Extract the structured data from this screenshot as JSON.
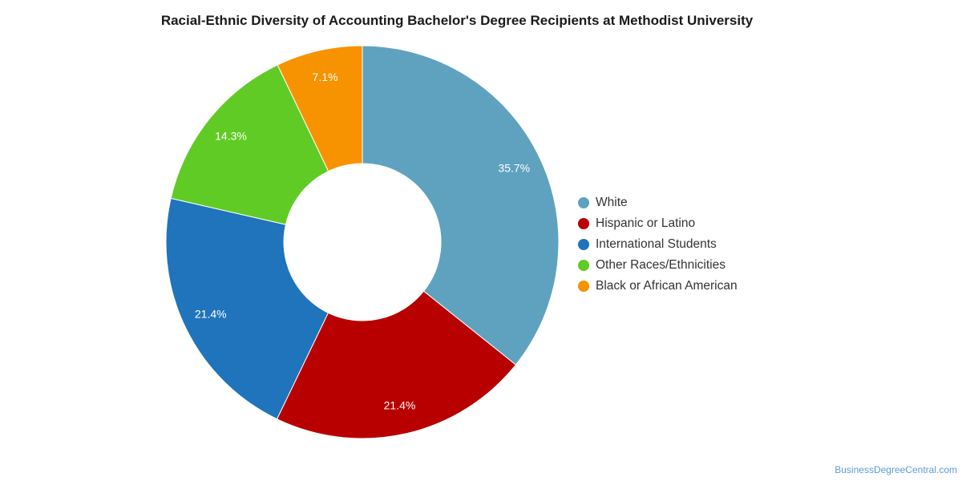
{
  "chart_data": {
    "type": "pie",
    "donut": true,
    "title": "Racial-Ethnic Diversity of Accounting Bachelor's Degree Recipients at Methodist University",
    "categories": [
      "White",
      "Hispanic or Latino",
      "International Students",
      "Other Races/Ethnicities",
      "Black or African American"
    ],
    "values": [
      35.7,
      21.4,
      21.4,
      14.3,
      7.1
    ],
    "value_labels": [
      "35.7%",
      "21.4%",
      "21.4%",
      "14.3%",
      "7.1%"
    ],
    "colors": [
      "#5fa2c0",
      "#b80000",
      "#1f74bb",
      "#61cb25",
      "#f79300"
    ],
    "legend_position": "right"
  },
  "credit": "BusinessDegreeCentral.com"
}
